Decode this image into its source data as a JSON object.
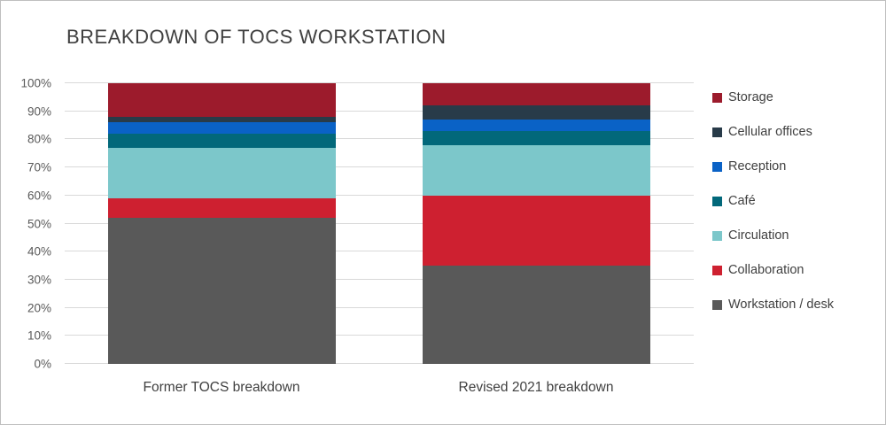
{
  "window": {
    "background": "#FFFFFF",
    "border_color": "#BFBFBF"
  },
  "chart_data": {
    "type": "bar",
    "stacked": true,
    "orientation": "vertical",
    "title": "BREAKDOWN OF TOCS WORKSTATION",
    "categories": [
      "Former TOCS breakdown",
      "Revised 2021 breakdown"
    ],
    "series": [
      {
        "name": "Workstation / desk",
        "color": "#595959",
        "values": [
          52,
          35
        ]
      },
      {
        "name": "Collaboration",
        "color": "#CE2030",
        "values": [
          7,
          25
        ]
      },
      {
        "name": "Circulation",
        "color": "#7CC7CA",
        "values": [
          18,
          18
        ]
      },
      {
        "name": "Café",
        "color": "#02687A",
        "values": [
          5,
          5
        ]
      },
      {
        "name": "Reception",
        "color": "#0A62C6",
        "values": [
          4,
          4
        ]
      },
      {
        "name": "Cellular offices",
        "color": "#283B49",
        "values": [
          2,
          5
        ]
      },
      {
        "name": "Storage",
        "color": "#9C1B2C",
        "values": [
          12,
          8
        ]
      }
    ],
    "legend_order_top_to_bottom": [
      "Storage",
      "Cellular offices",
      "Reception",
      "Café",
      "Circulation",
      "Collaboration",
      "Workstation / desk"
    ],
    "y_axis": {
      "min": 0,
      "max": 100,
      "step": 10,
      "tick_suffix": "%"
    },
    "grid": true,
    "gridline_color": "#D9D9D9",
    "legend_position": "right",
    "values_unit": "percent of total"
  }
}
